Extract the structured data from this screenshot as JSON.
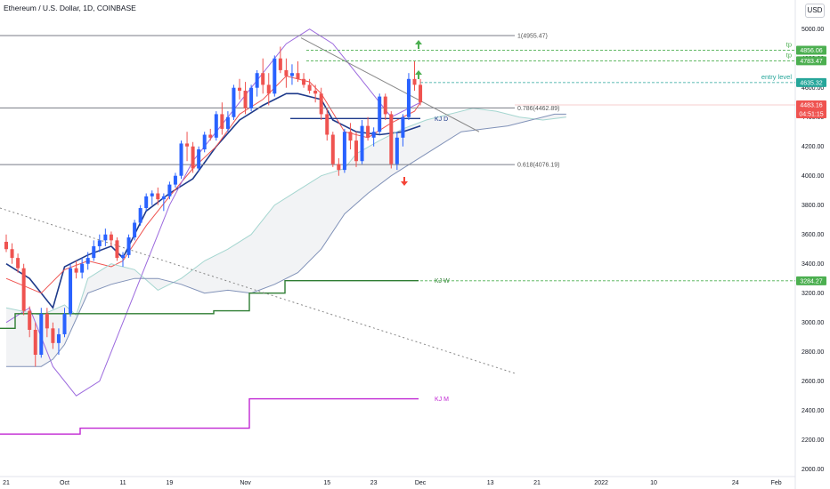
{
  "header": {
    "title": "Ethereum / U.S. Dollar, 1D, COINBASE",
    "currency_button": "USD"
  },
  "chart_data": {
    "type": "candlestick",
    "ylim": [
      1950,
      5180
    ],
    "y_ticks": [
      2000,
      2200,
      2400,
      2600,
      2800,
      3000,
      3200,
      3400,
      3600,
      3800,
      4000,
      4200,
      4400,
      4600,
      4800,
      5000
    ],
    "x_ticks": [
      {
        "label": "21",
        "i": 0
      },
      {
        "label": "Oct",
        "i": 10
      },
      {
        "label": "11",
        "i": 20
      },
      {
        "label": "19",
        "i": 28
      },
      {
        "label": "Nov",
        "i": 41
      },
      {
        "label": "15",
        "i": 55
      },
      {
        "label": "23",
        "i": 63
      },
      {
        "label": "Dec",
        "i": 71
      },
      {
        "label": "13",
        "i": 83
      },
      {
        "label": "21",
        "i": 91
      },
      {
        "label": "2022",
        "i": 102
      },
      {
        "label": "10",
        "i": 111
      },
      {
        "label": "24",
        "i": 125
      },
      {
        "label": "Feb",
        "i": 132
      }
    ],
    "candles": [
      [
        3550,
        3600,
        3480,
        3500
      ],
      [
        3500,
        3540,
        3400,
        3440
      ],
      [
        3440,
        3470,
        3340,
        3370
      ],
      [
        3370,
        3400,
        3050,
        3080
      ],
      [
        3080,
        3110,
        2900,
        2950
      ],
      [
        2950,
        3000,
        2700,
        2780
      ],
      [
        2780,
        3100,
        2760,
        3060
      ],
      [
        3060,
        3100,
        2900,
        2960
      ],
      [
        2960,
        3000,
        2820,
        2860
      ],
      [
        2860,
        2960,
        2780,
        2920
      ],
      [
        2920,
        3100,
        2900,
        3060
      ],
      [
        3060,
        3400,
        3040,
        3370
      ],
      [
        3370,
        3420,
        3300,
        3340
      ],
      [
        3340,
        3440,
        3300,
        3400
      ],
      [
        3400,
        3480,
        3360,
        3440
      ],
      [
        3440,
        3560,
        3420,
        3520
      ],
      [
        3520,
        3600,
        3480,
        3560
      ],
      [
        3560,
        3640,
        3520,
        3600
      ],
      [
        3600,
        3620,
        3520,
        3560
      ],
      [
        3560,
        3580,
        3420,
        3440
      ],
      [
        3440,
        3480,
        3380,
        3460
      ],
      [
        3460,
        3600,
        3440,
        3580
      ],
      [
        3580,
        3700,
        3560,
        3680
      ],
      [
        3680,
        3800,
        3660,
        3780
      ],
      [
        3780,
        3880,
        3760,
        3860
      ],
      [
        3860,
        3900,
        3800,
        3880
      ],
      [
        3880,
        3920,
        3800,
        3840
      ],
      [
        3840,
        3880,
        3760,
        3860
      ],
      [
        3860,
        3960,
        3840,
        3940
      ],
      [
        3940,
        4020,
        3920,
        4000
      ],
      [
        4000,
        4240,
        3980,
        4220
      ],
      [
        4220,
        4300,
        4100,
        4200
      ],
      [
        4200,
        4230,
        4020,
        4050
      ],
      [
        4050,
        4200,
        4030,
        4180
      ],
      [
        4180,
        4300,
        4160,
        4280
      ],
      [
        4280,
        4320,
        4240,
        4260
      ],
      [
        4260,
        4440,
        4240,
        4420
      ],
      [
        4420,
        4500,
        4280,
        4320
      ],
      [
        4320,
        4440,
        4300,
        4400
      ],
      [
        4400,
        4620,
        4380,
        4600
      ],
      [
        4600,
        4660,
        4520,
        4580
      ],
      [
        4580,
        4640,
        4420,
        4460
      ],
      [
        4460,
        4620,
        4440,
        4600
      ],
      [
        4600,
        4720,
        4540,
        4700
      ],
      [
        4700,
        4800,
        4560,
        4620
      ],
      [
        4620,
        4700,
        4480,
        4560
      ],
      [
        4560,
        4820,
        4540,
        4800
      ],
      [
        4800,
        4880,
        4700,
        4720
      ],
      [
        4720,
        4800,
        4600,
        4680
      ],
      [
        4680,
        4760,
        4620,
        4700
      ],
      [
        4700,
        4780,
        4640,
        4660
      ],
      [
        4660,
        4700,
        4600,
        4620
      ],
      [
        4620,
        4660,
        4560,
        4580
      ],
      [
        4580,
        4620,
        4500,
        4560
      ],
      [
        4560,
        4600,
        4380,
        4420
      ],
      [
        4420,
        4460,
        4240,
        4280
      ],
      [
        4280,
        4300,
        4060,
        4080
      ],
      [
        4080,
        4120,
        4000,
        4040
      ],
      [
        4040,
        4320,
        4020,
        4300
      ],
      [
        4300,
        4360,
        4180,
        4240
      ],
      [
        4240,
        4300,
        4060,
        4100
      ],
      [
        4100,
        4380,
        4080,
        4340
      ],
      [
        4340,
        4400,
        4240,
        4260
      ],
      [
        4260,
        4330,
        4200,
        4300
      ],
      [
        4300,
        4560,
        4280,
        4540
      ],
      [
        4540,
        4560,
        4380,
        4420
      ],
      [
        4420,
        4440,
        4050,
        4080
      ],
      [
        4080,
        4300,
        4040,
        4260
      ],
      [
        4260,
        4420,
        4200,
        4400
      ],
      [
        4400,
        4700,
        4380,
        4660
      ],
      [
        4660,
        4780,
        4580,
        4620
      ],
      [
        4620,
        4660,
        4480,
        4500
      ]
    ],
    "series": [
      {
        "points": [
          [
            0,
            3400
          ],
          [
            4,
            3300
          ],
          [
            8,
            3100
          ],
          [
            10,
            3380
          ],
          [
            14,
            3460
          ],
          [
            18,
            3520
          ],
          [
            20,
            3440
          ],
          [
            24,
            3760
          ],
          [
            28,
            3880
          ],
          [
            32,
            3980
          ],
          [
            36,
            4200
          ],
          [
            40,
            4380
          ],
          [
            44,
            4480
          ],
          [
            48,
            4560
          ],
          [
            50,
            4560
          ],
          [
            54,
            4520
          ],
          [
            56,
            4380
          ],
          [
            60,
            4300
          ],
          [
            64,
            4280
          ],
          [
            68,
            4300
          ],
          [
            71,
            4340
          ]
        ]
      },
      {
        "points": [
          [
            0,
            3300
          ],
          [
            6,
            3200
          ],
          [
            10,
            3360
          ],
          [
            14,
            3420
          ],
          [
            18,
            3380
          ],
          [
            20,
            3420
          ],
          [
            24,
            3660
          ],
          [
            28,
            3860
          ],
          [
            32,
            4050
          ],
          [
            36,
            4200
          ],
          [
            40,
            4420
          ],
          [
            44,
            4520
          ],
          [
            48,
            4680
          ],
          [
            52,
            4640
          ],
          [
            54,
            4560
          ],
          [
            58,
            4300
          ],
          [
            62,
            4260
          ],
          [
            66,
            4360
          ],
          [
            70,
            4440
          ],
          [
            71,
            4500
          ]
        ]
      },
      {
        "points": [
          [
            0,
            3000
          ],
          [
            4,
            3100
          ],
          [
            8,
            2700
          ],
          [
            12,
            2500
          ],
          [
            16,
            2600
          ],
          [
            20,
            3000
          ],
          [
            24,
            3400
          ],
          [
            28,
            3800
          ],
          [
            32,
            4100
          ],
          [
            36,
            4300
          ],
          [
            40,
            4500
          ],
          [
            44,
            4700
          ],
          [
            48,
            4900
          ],
          [
            52,
            5000
          ],
          [
            56,
            4900
          ],
          [
            58,
            4800
          ],
          [
            60,
            4700
          ],
          [
            62,
            4600
          ],
          [
            66,
            4400
          ],
          [
            70,
            4480
          ],
          [
            71,
            4500
          ]
        ]
      },
      {
        "points": [
          [
            0,
            3100
          ],
          [
            6,
            3050
          ],
          [
            10,
            3120
          ],
          [
            12,
            3050
          ],
          [
            14,
            3300
          ],
          [
            18,
            3400
          ],
          [
            22,
            3360
          ],
          [
            26,
            3220
          ],
          [
            30,
            3300
          ],
          [
            34,
            3420
          ],
          [
            38,
            3500
          ],
          [
            42,
            3600
          ],
          [
            44,
            3700
          ],
          [
            46,
            3800
          ],
          [
            50,
            3900
          ],
          [
            54,
            4000
          ],
          [
            58,
            4050
          ],
          [
            60,
            4150
          ],
          [
            64,
            4240
          ],
          [
            68,
            4320
          ],
          [
            72,
            4380
          ],
          [
            76,
            4420
          ],
          [
            80,
            4460
          ],
          [
            84,
            4440
          ],
          [
            88,
            4400
          ],
          [
            92,
            4380
          ],
          [
            96,
            4400
          ]
        ]
      },
      {
        "points": [
          [
            0,
            2700
          ],
          [
            6,
            2700
          ],
          [
            8,
            2750
          ],
          [
            10,
            2850
          ],
          [
            14,
            3200
          ],
          [
            18,
            3260
          ],
          [
            22,
            3300
          ],
          [
            26,
            3300
          ],
          [
            30,
            3260
          ],
          [
            34,
            3200
          ],
          [
            38,
            3220
          ],
          [
            42,
            3200
          ],
          [
            46,
            3260
          ],
          [
            50,
            3340
          ],
          [
            54,
            3500
          ],
          [
            58,
            3740
          ],
          [
            62,
            3880
          ],
          [
            66,
            4000
          ],
          [
            70,
            4100
          ],
          [
            74,
            4200
          ],
          [
            78,
            4300
          ],
          [
            82,
            4320
          ],
          [
            86,
            4340
          ],
          [
            90,
            4380
          ],
          [
            94,
            4420
          ],
          [
            96,
            4420
          ]
        ]
      }
    ],
    "level_lines": [
      {
        "label": "1(4955.47)",
        "value": 4955.47
      },
      {
        "label": "0.786(4462.89)",
        "value": 4462.89
      },
      {
        "label": "0.618(4076.19)",
        "value": 4076.19
      }
    ],
    "kijun_labels": [
      {
        "label": "KJ D",
        "value": 4390
      },
      {
        "label": "KJ W",
        "value": 3285
      },
      {
        "label": "KJ M",
        "value": 2480
      }
    ],
    "annotations": {
      "tp_label": "tp",
      "entry_label": "entry level"
    },
    "price_tags": [
      {
        "value": 4856.06,
        "label": "4856.06",
        "color": "#4caf50"
      },
      {
        "value": 4783.47,
        "label": "4783.47",
        "color": "#4caf50"
      },
      {
        "value": 4635.32,
        "label": "4635.32",
        "color": "#26a69a"
      },
      {
        "value": 4483.16,
        "label": "4483.16",
        "sub": "04:51:15",
        "color": "#ef5350"
      },
      {
        "value": 3284.27,
        "label": "3284.27",
        "color": "#4caf50"
      }
    ]
  }
}
